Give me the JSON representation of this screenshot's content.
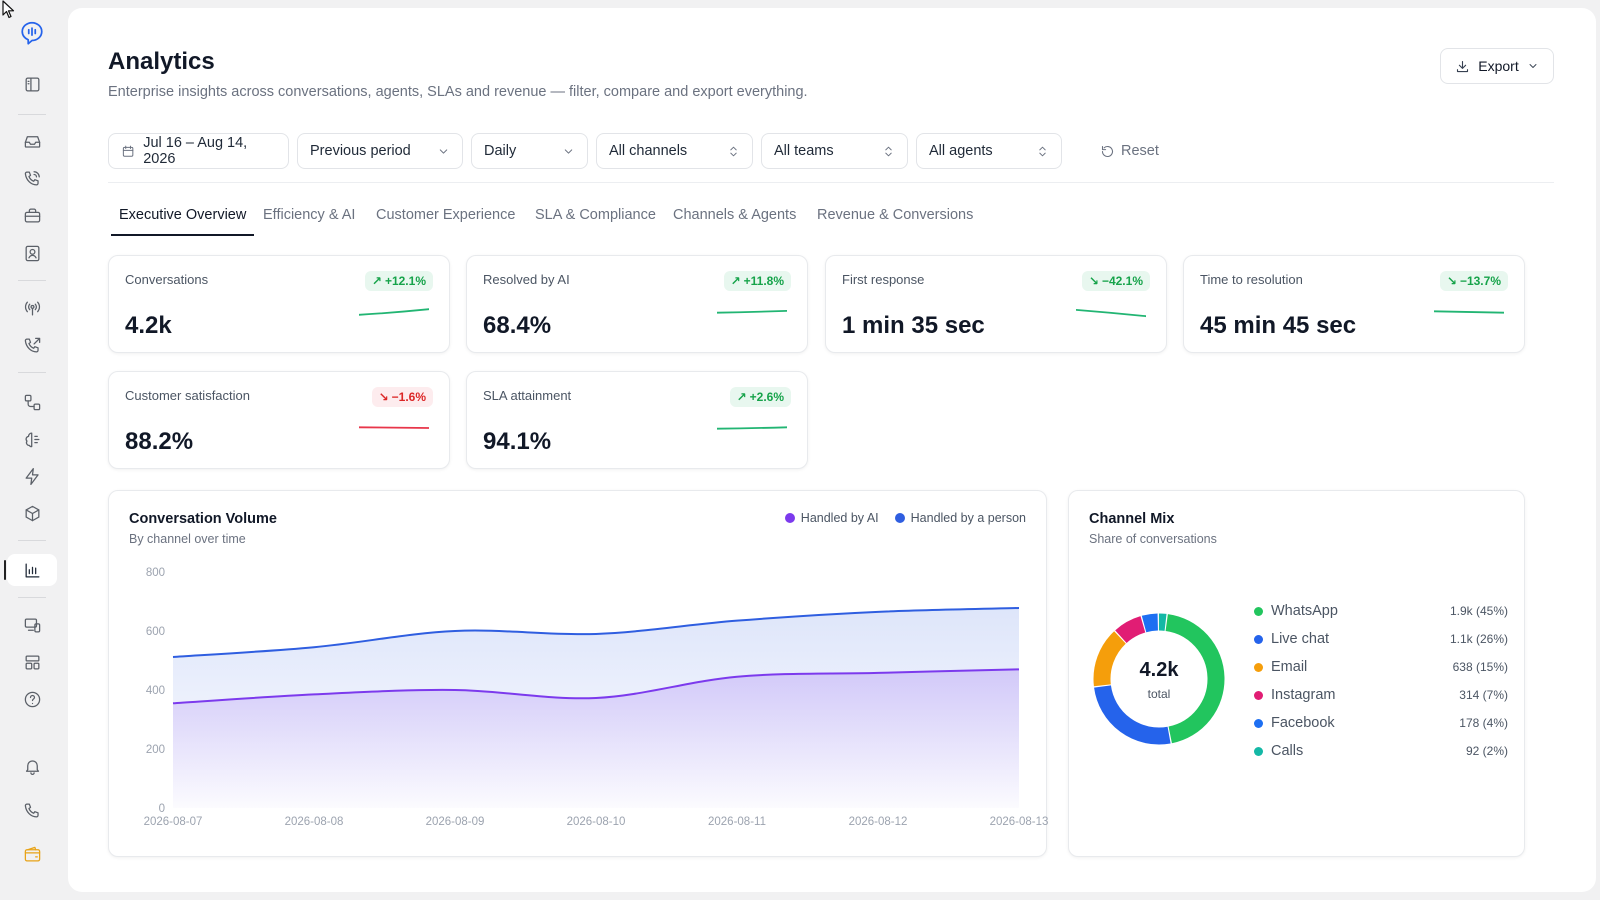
{
  "sidebar": {
    "items": [
      {
        "icon": "logo-icon"
      },
      {
        "icon": "panel-icon"
      },
      {
        "icon": "inbox-icon"
      },
      {
        "icon": "phone-call-icon"
      },
      {
        "icon": "briefcase-icon"
      },
      {
        "icon": "contacts-icon"
      },
      {
        "icon": "broadcast-icon"
      },
      {
        "icon": "phone-outgoing-icon"
      },
      {
        "icon": "workflow-icon"
      },
      {
        "icon": "ai-brain-icon"
      },
      {
        "icon": "lightning-icon"
      },
      {
        "icon": "package-icon"
      },
      {
        "icon": "analytics-icon",
        "active": true
      },
      {
        "icon": "devices-icon"
      },
      {
        "icon": "layout-icon"
      },
      {
        "icon": "help-icon"
      },
      {
        "icon": "bell-icon"
      },
      {
        "icon": "phone-icon"
      },
      {
        "icon": "wallet-icon"
      }
    ]
  },
  "header": {
    "title": "Analytics",
    "subtitle": "Enterprise insights across conversations, agents, SLAs and revenue — filter, compare and export everything.",
    "export_label": "Export"
  },
  "filters": {
    "date_range": "Jul 16 – Aug 14, 2026",
    "compare": "Previous period",
    "granularity": "Daily",
    "channels": "All channels",
    "teams": "All teams",
    "agents": "All agents",
    "reset_label": "Reset"
  },
  "tabs": [
    {
      "label": "Executive Overview",
      "active": true
    },
    {
      "label": "Efficiency & AI"
    },
    {
      "label": "Customer Experience"
    },
    {
      "label": "SLA & Compliance"
    },
    {
      "label": "Channels & Agents"
    },
    {
      "label": "Revenue & Conversions"
    }
  ],
  "kpis": [
    {
      "label": "Conversations",
      "value": "4.2k",
      "delta": "+12.1%",
      "direction": "up",
      "spark": [
        0.3,
        0.45,
        0.7
      ],
      "color": "#22b573"
    },
    {
      "label": "Resolved by AI",
      "value": "68.4%",
      "delta": "+11.8%",
      "direction": "up",
      "spark": [
        0.45,
        0.5,
        0.58
      ],
      "color": "#22b573"
    },
    {
      "label": "First response",
      "value": "1 min 35 sec",
      "delta": "−42.1%",
      "direction": "down-good",
      "spark": [
        0.65,
        0.45,
        0.2
      ],
      "color": "#22b573"
    },
    {
      "label": "Time to resolution",
      "value": "45 min 45 sec",
      "delta": "−13.7%",
      "direction": "down-good",
      "spark": [
        0.55,
        0.5,
        0.45
      ],
      "color": "#22b573"
    },
    {
      "label": "Customer satisfaction",
      "value": "88.2%",
      "delta": "−1.6%",
      "direction": "down-bad",
      "spark": [
        0.55,
        0.52,
        0.5
      ],
      "color": "#e8364a"
    },
    {
      "label": "SLA attainment",
      "value": "94.1%",
      "delta": "+2.6%",
      "direction": "up",
      "spark": [
        0.45,
        0.48,
        0.55
      ],
      "color": "#22b573"
    }
  ],
  "volume": {
    "title": "Conversation Volume",
    "subtitle": "By channel over time",
    "legend_ai": "Handled by AI",
    "legend_person": "Handled by a person",
    "color_ai": "#7c3aed",
    "color_person": "#2f5ee0"
  },
  "channel_mix": {
    "title": "Channel Mix",
    "subtitle": "Share of conversations",
    "total_value": "4.2k",
    "total_label": "total",
    "rows": [
      {
        "name": "WhatsApp",
        "value": "1.9k (45%)",
        "color": "#22c55e"
      },
      {
        "name": "Live chat",
        "value": "1.1k (26%)",
        "color": "#2563eb"
      },
      {
        "name": "Email",
        "value": "638 (15%)",
        "color": "#f59e0b"
      },
      {
        "name": "Instagram",
        "value": "314 (7%)",
        "color": "#e11d74"
      },
      {
        "name": "Facebook",
        "value": "178 (4%)",
        "color": "#1d6ff2"
      },
      {
        "name": "Calls",
        "value": "92 (2%)",
        "color": "#14b8a6"
      }
    ]
  },
  "chart_data": [
    {
      "type": "area",
      "title": "Conversation Volume",
      "subtitle": "By channel over time",
      "x": [
        "2026-08-07",
        "2026-08-08",
        "2026-08-09",
        "2026-08-10",
        "2026-08-11",
        "2026-08-12",
        "2026-08-13"
      ],
      "ylim": [
        0,
        800
      ],
      "yticks": [
        0,
        200,
        400,
        600,
        800
      ],
      "grid": false,
      "legend": "top-right",
      "series": [
        {
          "name": "Handled by a person",
          "values": [
            512,
            545,
            600,
            590,
            635,
            665,
            678
          ],
          "color": "#2f5ee0"
        },
        {
          "name": "Handled by AI",
          "values": [
            355,
            385,
            400,
            373,
            445,
            458,
            470
          ],
          "color": "#7c3aed"
        }
      ]
    },
    {
      "type": "pie",
      "title": "Channel Mix",
      "subtitle": "Share of conversations",
      "categories": [
        "WhatsApp",
        "Live chat",
        "Email",
        "Instagram",
        "Facebook",
        "Calls"
      ],
      "values": [
        1900,
        1100,
        638,
        314,
        178,
        92
      ],
      "percent": [
        45,
        26,
        15,
        7,
        4,
        2
      ],
      "colors": [
        "#22c55e",
        "#2563eb",
        "#f59e0b",
        "#e11d74",
        "#1d6ff2",
        "#14b8a6"
      ],
      "legend": "right"
    }
  ]
}
